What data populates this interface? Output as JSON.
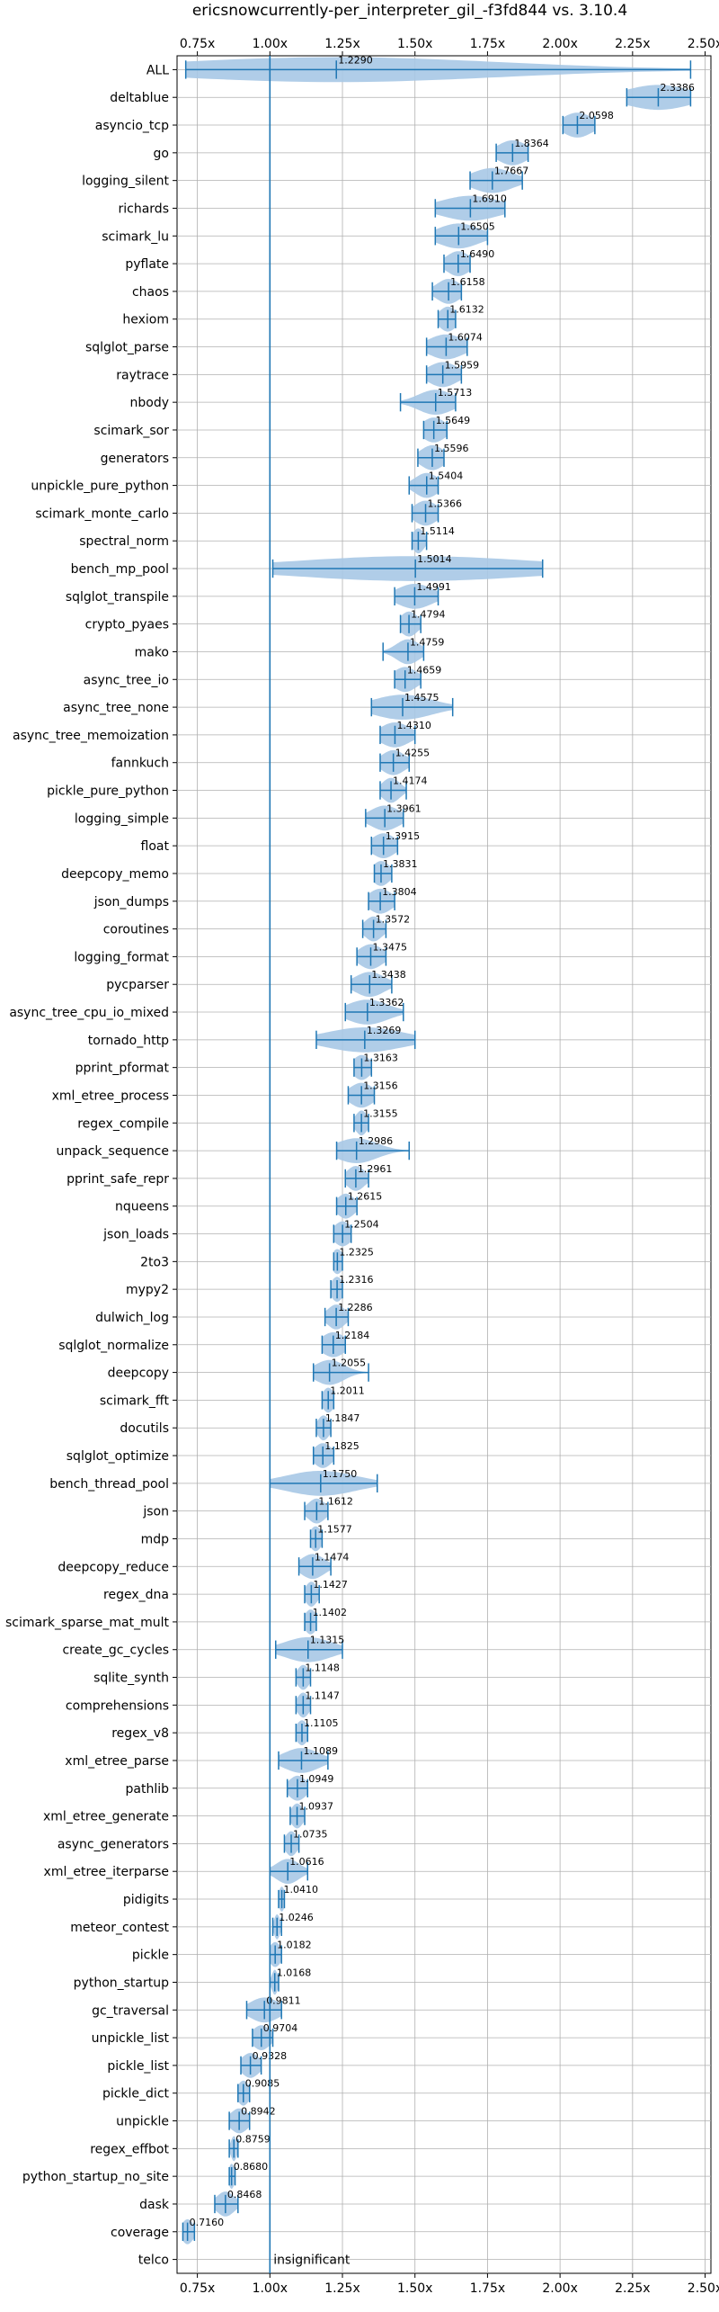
{
  "chart_data": {
    "type": "violin",
    "title": "ericsnowcurrently-per_interpreter_gil_-f3fd844 vs. 3.10.4",
    "x_ticks": [
      "0.75x",
      "1.00x",
      "1.25x",
      "1.50x",
      "1.75x",
      "2.00x",
      "2.25x",
      "2.50x"
    ],
    "xlim": [
      0.68,
      2.52
    ],
    "reference_value": 1.0,
    "reference_label": "insignificant",
    "grid": true,
    "colors": {
      "violin": "#a7c8e6",
      "line": "#1f77b4"
    },
    "rows": [
      {
        "name": "ALL",
        "value": 1.229,
        "min": 0.71,
        "max": 2.45,
        "spread": 0.56
      },
      {
        "name": "deltablue",
        "value": 2.3386,
        "min": 2.23,
        "max": 2.45,
        "spread": 0.11
      },
      {
        "name": "asyncio_tcp",
        "value": 2.0598,
        "min": 2.01,
        "max": 2.12,
        "spread": 0.05
      },
      {
        "name": "go",
        "value": 1.8364,
        "min": 1.78,
        "max": 1.89,
        "spread": 0.05
      },
      {
        "name": "logging_silent",
        "value": 1.7667,
        "min": 1.69,
        "max": 1.87,
        "spread": 0.07
      },
      {
        "name": "richards",
        "value": 1.691,
        "min": 1.57,
        "max": 1.81,
        "spread": 0.1
      },
      {
        "name": "scimark_lu",
        "value": 1.6505,
        "min": 1.57,
        "max": 1.75,
        "spread": 0.07
      },
      {
        "name": "pyflate",
        "value": 1.649,
        "min": 1.6,
        "max": 1.69,
        "spread": 0.04
      },
      {
        "name": "chaos",
        "value": 1.6158,
        "min": 1.56,
        "max": 1.66,
        "spread": 0.04
      },
      {
        "name": "hexiom",
        "value": 1.6132,
        "min": 1.58,
        "max": 1.64,
        "spread": 0.03
      },
      {
        "name": "sqlglot_parse",
        "value": 1.6074,
        "min": 1.54,
        "max": 1.68,
        "spread": 0.06
      },
      {
        "name": "raytrace",
        "value": 1.5959,
        "min": 1.54,
        "max": 1.66,
        "spread": 0.05
      },
      {
        "name": "nbody",
        "value": 1.5713,
        "min": 1.45,
        "max": 1.64,
        "spread": 0.06
      },
      {
        "name": "scimark_sor",
        "value": 1.5649,
        "min": 1.53,
        "max": 1.61,
        "spread": 0.04
      },
      {
        "name": "generators",
        "value": 1.5596,
        "min": 1.51,
        "max": 1.6,
        "spread": 0.04
      },
      {
        "name": "unpickle_pure_python",
        "value": 1.5404,
        "min": 1.48,
        "max": 1.58,
        "spread": 0.04
      },
      {
        "name": "scimark_monte_carlo",
        "value": 1.5366,
        "min": 1.49,
        "max": 1.58,
        "spread": 0.04
      },
      {
        "name": "spectral_norm",
        "value": 1.5114,
        "min": 1.49,
        "max": 1.54,
        "spread": 0.02
      },
      {
        "name": "bench_mp_pool",
        "value": 1.5014,
        "min": 1.01,
        "max": 1.94,
        "spread": 0.42
      },
      {
        "name": "sqlglot_transpile",
        "value": 1.4991,
        "min": 1.43,
        "max": 1.58,
        "spread": 0.06
      },
      {
        "name": "crypto_pyaes",
        "value": 1.4794,
        "min": 1.45,
        "max": 1.52,
        "spread": 0.03
      },
      {
        "name": "mako",
        "value": 1.4759,
        "min": 1.39,
        "max": 1.53,
        "spread": 0.04
      },
      {
        "name": "async_tree_io",
        "value": 1.4659,
        "min": 1.43,
        "max": 1.52,
        "spread": 0.04
      },
      {
        "name": "async_tree_none",
        "value": 1.4575,
        "min": 1.35,
        "max": 1.63,
        "spread": 0.1
      },
      {
        "name": "async_tree_memoization",
        "value": 1.431,
        "min": 1.38,
        "max": 1.5,
        "spread": 0.05
      },
      {
        "name": "fannkuch",
        "value": 1.4255,
        "min": 1.38,
        "max": 1.48,
        "spread": 0.04
      },
      {
        "name": "pickle_pure_python",
        "value": 1.4174,
        "min": 1.38,
        "max": 1.47,
        "spread": 0.03
      },
      {
        "name": "logging_simple",
        "value": 1.3961,
        "min": 1.33,
        "max": 1.46,
        "spread": 0.05
      },
      {
        "name": "float",
        "value": 1.3915,
        "min": 1.35,
        "max": 1.44,
        "spread": 0.04
      },
      {
        "name": "deepcopy_memo",
        "value": 1.3831,
        "min": 1.36,
        "max": 1.42,
        "spread": 0.03
      },
      {
        "name": "json_dumps",
        "value": 1.3804,
        "min": 1.34,
        "max": 1.43,
        "spread": 0.04
      },
      {
        "name": "coroutines",
        "value": 1.3572,
        "min": 1.32,
        "max": 1.4,
        "spread": 0.03
      },
      {
        "name": "logging_format",
        "value": 1.3475,
        "min": 1.3,
        "max": 1.4,
        "spread": 0.04
      },
      {
        "name": "pycparser",
        "value": 1.3438,
        "min": 1.28,
        "max": 1.42,
        "spread": 0.05
      },
      {
        "name": "async_tree_cpu_io_mixed",
        "value": 1.3362,
        "min": 1.26,
        "max": 1.46,
        "spread": 0.07
      },
      {
        "name": "tornado_http",
        "value": 1.3269,
        "min": 1.16,
        "max": 1.5,
        "spread": 0.13
      },
      {
        "name": "pprint_pformat",
        "value": 1.3163,
        "min": 1.29,
        "max": 1.35,
        "spread": 0.03
      },
      {
        "name": "xml_etree_process",
        "value": 1.3156,
        "min": 1.27,
        "max": 1.36,
        "spread": 0.04
      },
      {
        "name": "regex_compile",
        "value": 1.3155,
        "min": 1.29,
        "max": 1.34,
        "spread": 0.02
      },
      {
        "name": "unpack_sequence",
        "value": 1.2986,
        "min": 1.23,
        "max": 1.48,
        "spread": 0.07
      },
      {
        "name": "pprint_safe_repr",
        "value": 1.2961,
        "min": 1.26,
        "max": 1.34,
        "spread": 0.03
      },
      {
        "name": "nqueens",
        "value": 1.2615,
        "min": 1.23,
        "max": 1.3,
        "spread": 0.03
      },
      {
        "name": "json_loads",
        "value": 1.2504,
        "min": 1.22,
        "max": 1.28,
        "spread": 0.03
      },
      {
        "name": "2to3",
        "value": 1.2325,
        "min": 1.22,
        "max": 1.25,
        "spread": 0.02
      },
      {
        "name": "mypy2",
        "value": 1.2316,
        "min": 1.21,
        "max": 1.25,
        "spread": 0.02
      },
      {
        "name": "dulwich_log",
        "value": 1.2286,
        "min": 1.19,
        "max": 1.27,
        "spread": 0.03
      },
      {
        "name": "sqlglot_normalize",
        "value": 1.2184,
        "min": 1.18,
        "max": 1.26,
        "spread": 0.04
      },
      {
        "name": "deepcopy",
        "value": 1.2055,
        "min": 1.15,
        "max": 1.34,
        "spread": 0.05
      },
      {
        "name": "scimark_fft",
        "value": 1.2011,
        "min": 1.18,
        "max": 1.22,
        "spread": 0.02
      },
      {
        "name": "docutils",
        "value": 1.1847,
        "min": 1.16,
        "max": 1.21,
        "spread": 0.02
      },
      {
        "name": "sqlglot_optimize",
        "value": 1.1825,
        "min": 1.15,
        "max": 1.22,
        "spread": 0.03
      },
      {
        "name": "bench_thread_pool",
        "value": 1.175,
        "min": 1.0,
        "max": 1.37,
        "spread": 0.12
      },
      {
        "name": "json",
        "value": 1.1612,
        "min": 1.12,
        "max": 1.2,
        "spread": 0.03
      },
      {
        "name": "mdp",
        "value": 1.1577,
        "min": 1.14,
        "max": 1.18,
        "spread": 0.02
      },
      {
        "name": "deepcopy_reduce",
        "value": 1.1474,
        "min": 1.1,
        "max": 1.21,
        "spread": 0.04
      },
      {
        "name": "regex_dna",
        "value": 1.1427,
        "min": 1.12,
        "max": 1.17,
        "spread": 0.02
      },
      {
        "name": "scimark_sparse_mat_mult",
        "value": 1.1402,
        "min": 1.12,
        "max": 1.16,
        "spread": 0.02
      },
      {
        "name": "create_gc_cycles",
        "value": 1.1315,
        "min": 1.02,
        "max": 1.25,
        "spread": 0.08
      },
      {
        "name": "sqlite_synth",
        "value": 1.1148,
        "min": 1.09,
        "max": 1.14,
        "spread": 0.02
      },
      {
        "name": "comprehensions",
        "value": 1.1147,
        "min": 1.09,
        "max": 1.14,
        "spread": 0.02
      },
      {
        "name": "regex_v8",
        "value": 1.1105,
        "min": 1.09,
        "max": 1.13,
        "spread": 0.02
      },
      {
        "name": "xml_etree_parse",
        "value": 1.1089,
        "min": 1.03,
        "max": 1.2,
        "spread": 0.06
      },
      {
        "name": "pathlib",
        "value": 1.0949,
        "min": 1.06,
        "max": 1.13,
        "spread": 0.03
      },
      {
        "name": "xml_etree_generate",
        "value": 1.0937,
        "min": 1.07,
        "max": 1.12,
        "spread": 0.02
      },
      {
        "name": "async_generators",
        "value": 1.0735,
        "min": 1.05,
        "max": 1.1,
        "spread": 0.02
      },
      {
        "name": "xml_etree_iterparse",
        "value": 1.0616,
        "min": 1.0,
        "max": 1.13,
        "spread": 0.04
      },
      {
        "name": "pidigits",
        "value": 1.041,
        "min": 1.03,
        "max": 1.05,
        "spread": 0.01
      },
      {
        "name": "meteor_contest",
        "value": 1.0246,
        "min": 1.01,
        "max": 1.04,
        "spread": 0.01
      },
      {
        "name": "pickle",
        "value": 1.0182,
        "min": 1.0,
        "max": 1.04,
        "spread": 0.02
      },
      {
        "name": "python_startup",
        "value": 1.0168,
        "min": 1.0,
        "max": 1.03,
        "spread": 0.01
      },
      {
        "name": "gc_traversal",
        "value": 0.9811,
        "min": 0.92,
        "max": 1.04,
        "spread": 0.05
      },
      {
        "name": "unpickle_list",
        "value": 0.9704,
        "min": 0.94,
        "max": 1.01,
        "spread": 0.03
      },
      {
        "name": "pickle_list",
        "value": 0.9328,
        "min": 0.9,
        "max": 0.97,
        "spread": 0.03
      },
      {
        "name": "pickle_dict",
        "value": 0.9085,
        "min": 0.89,
        "max": 0.93,
        "spread": 0.02
      },
      {
        "name": "unpickle",
        "value": 0.8942,
        "min": 0.86,
        "max": 0.93,
        "spread": 0.03
      },
      {
        "name": "regex_effbot",
        "value": 0.8759,
        "min": 0.86,
        "max": 0.89,
        "spread": 0.01
      },
      {
        "name": "python_startup_no_site",
        "value": 0.868,
        "min": 0.86,
        "max": 0.88,
        "spread": 0.01
      },
      {
        "name": "dask",
        "value": 0.8468,
        "min": 0.81,
        "max": 0.89,
        "spread": 0.03
      },
      {
        "name": "coverage",
        "value": 0.716,
        "min": 0.7,
        "max": 0.74,
        "spread": 0.02
      },
      {
        "name": "telco",
        "value": null,
        "min": null,
        "max": null,
        "spread": null
      }
    ]
  }
}
